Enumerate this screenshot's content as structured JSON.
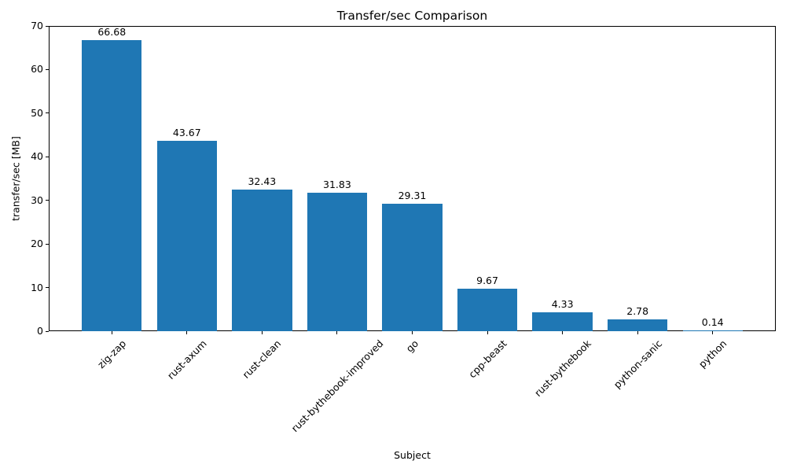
{
  "chart_data": {
    "type": "bar",
    "title": "Transfer/sec Comparison",
    "xlabel": "Subject",
    "ylabel": "transfer/sec [MB]",
    "categories": [
      "zig-zap",
      "rust-axum",
      "rust-clean",
      "rust-bythebook-improved",
      "go",
      "cpp-beast",
      "rust-bythebook",
      "python-sanic",
      "python"
    ],
    "values": [
      66.68,
      43.67,
      32.43,
      31.83,
      29.31,
      9.67,
      4.33,
      2.78,
      0.14
    ],
    "bar_labels": [
      "66.68",
      "43.67",
      "32.43",
      "31.83",
      "29.31",
      "9.67",
      "4.33",
      "2.78",
      "0.14"
    ],
    "ylim": [
      0,
      70
    ],
    "yticks": [
      0,
      10,
      20,
      30,
      40,
      50,
      60,
      70
    ],
    "bar_color": "#1f77b4",
    "bar_width_fraction": 0.8,
    "xtick_rotation_deg": 45,
    "grid": false,
    "legend": "none",
    "background_color": "#ffffff",
    "text_color": "#000000"
  }
}
